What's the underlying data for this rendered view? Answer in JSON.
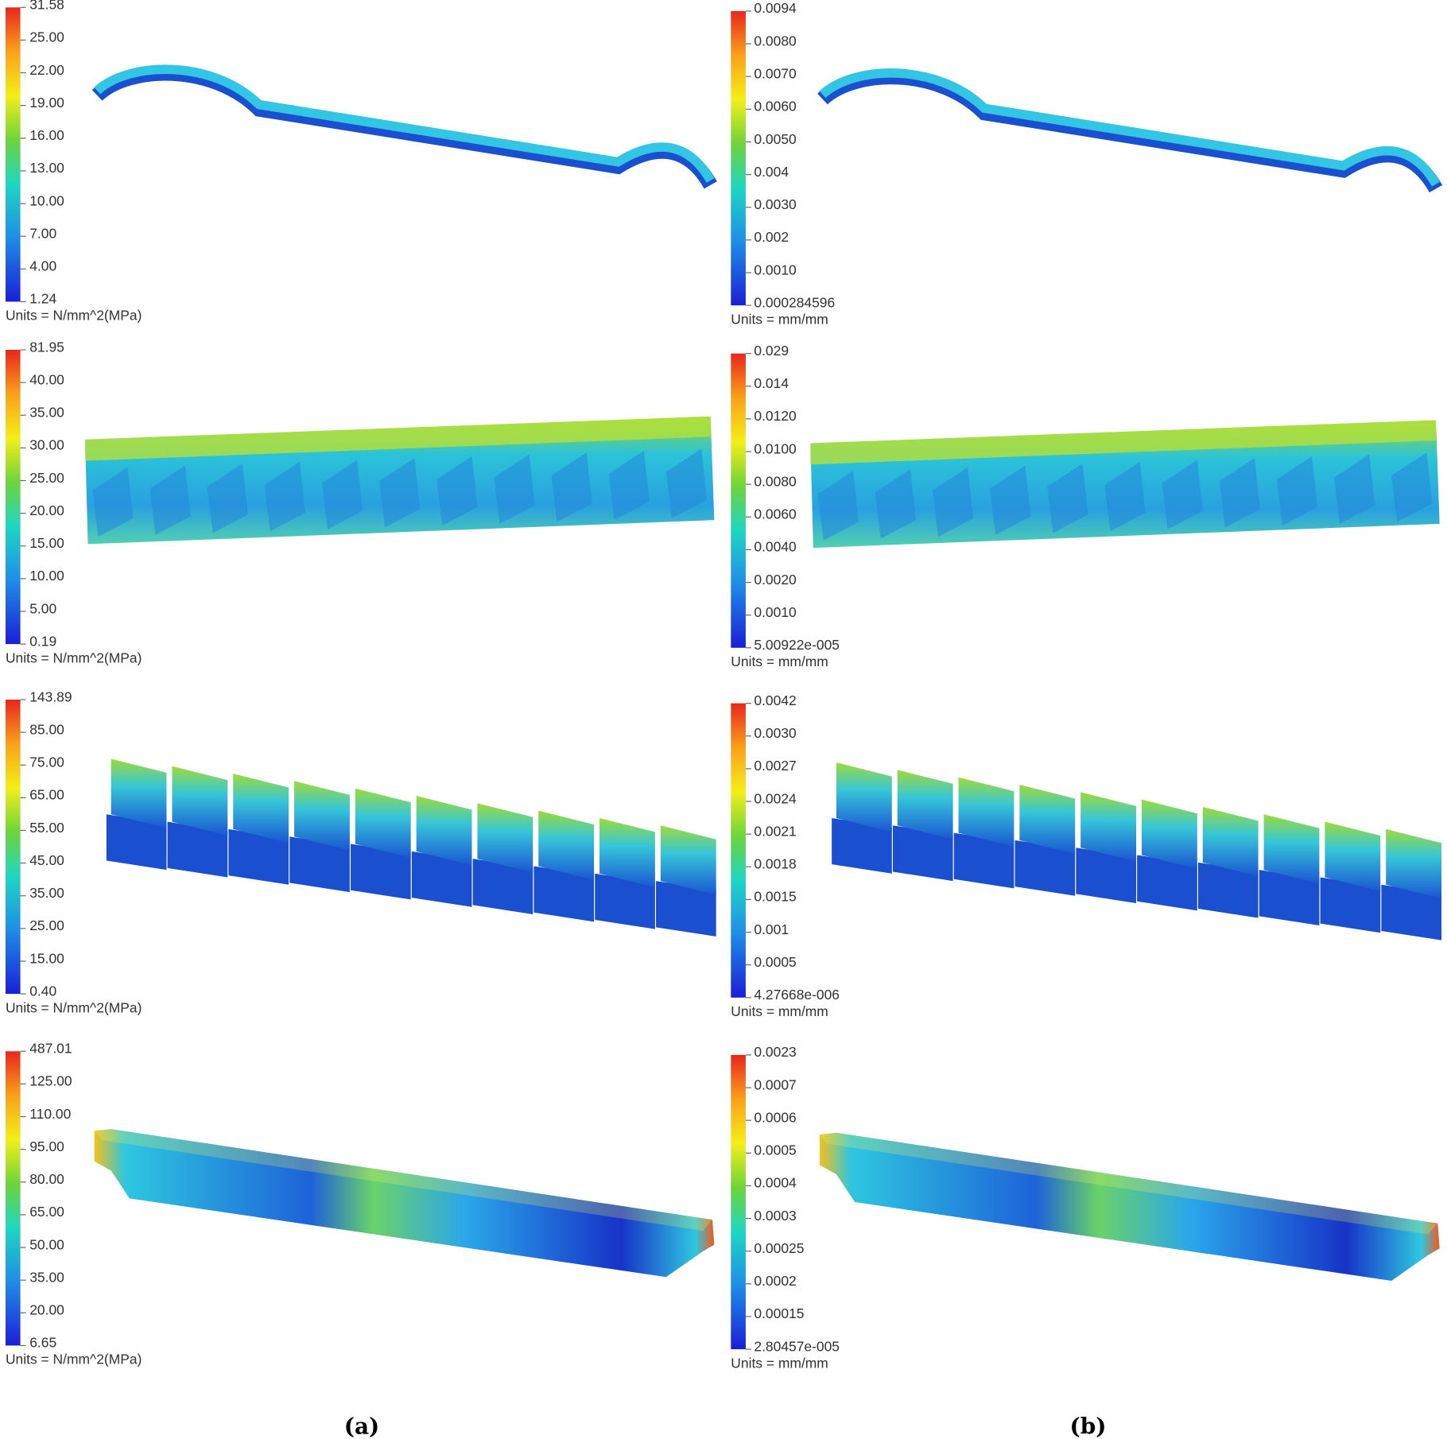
{
  "panels": [
    {
      "scale_labels": [
        "31.58",
        "25.00",
        "22.00",
        "19.00",
        "16.00",
        "13.00",
        "10.00",
        "7.00",
        "4.00",
        "1.24"
      ],
      "units": "Units = N/mm^2(MPa)"
    },
    {
      "scale_labels": [
        "0.0094",
        "0.0080",
        "0.0070",
        "0.0060",
        "0.0050",
        "0.004",
        "0.0030",
        "0.002",
        "0.0010",
        "0.000284596"
      ],
      "units": "Units = mm/mm"
    },
    {
      "scale_labels": [
        "81.95",
        "40.00",
        "35.00",
        "30.00",
        "25.00",
        "20.00",
        "15.00",
        "10.00",
        "5.00",
        "0.19"
      ],
      "units": "Units = N/mm^2(MPa)"
    },
    {
      "scale_labels": [
        "0.029",
        "0.014",
        "0.0120",
        "0.0100",
        "0.0080",
        "0.0060",
        "0.0040",
        "0.0020",
        "0.0010",
        "5.00922e-005"
      ],
      "units": "Units = mm/mm"
    },
    {
      "scale_labels": [
        "143.89",
        "85.00",
        "75.00",
        "65.00",
        "55.00",
        "45.00",
        "35.00",
        "25.00",
        "15.00",
        "0.40"
      ],
      "units": "Units = N/mm^2(MPa)"
    },
    {
      "scale_labels": [
        "0.0042",
        "0.0030",
        "0.0027",
        "0.0024",
        "0.0021",
        "0.0018",
        "0.0015",
        "0.001",
        "0.0005",
        "4.27668e-006"
      ],
      "units": "Units = mm/mm"
    },
    {
      "scale_labels": [
        "487.01",
        "125.00",
        "110.00",
        "95.00",
        "80.00",
        "65.00",
        "50.00",
        "35.00",
        "20.00",
        "6.65"
      ],
      "units": "Units = N/mm^2(MPa)"
    },
    {
      "scale_labels": [
        "0.0023",
        "0.0007",
        "0.0006",
        "0.0005",
        "0.0004",
        "0.0003",
        "0.00025",
        "0.0002",
        "0.00015",
        "2.80457e-005"
      ],
      "units": "Units = mm/mm"
    }
  ],
  "captions": [
    "(a)",
    "(b)"
  ]
}
